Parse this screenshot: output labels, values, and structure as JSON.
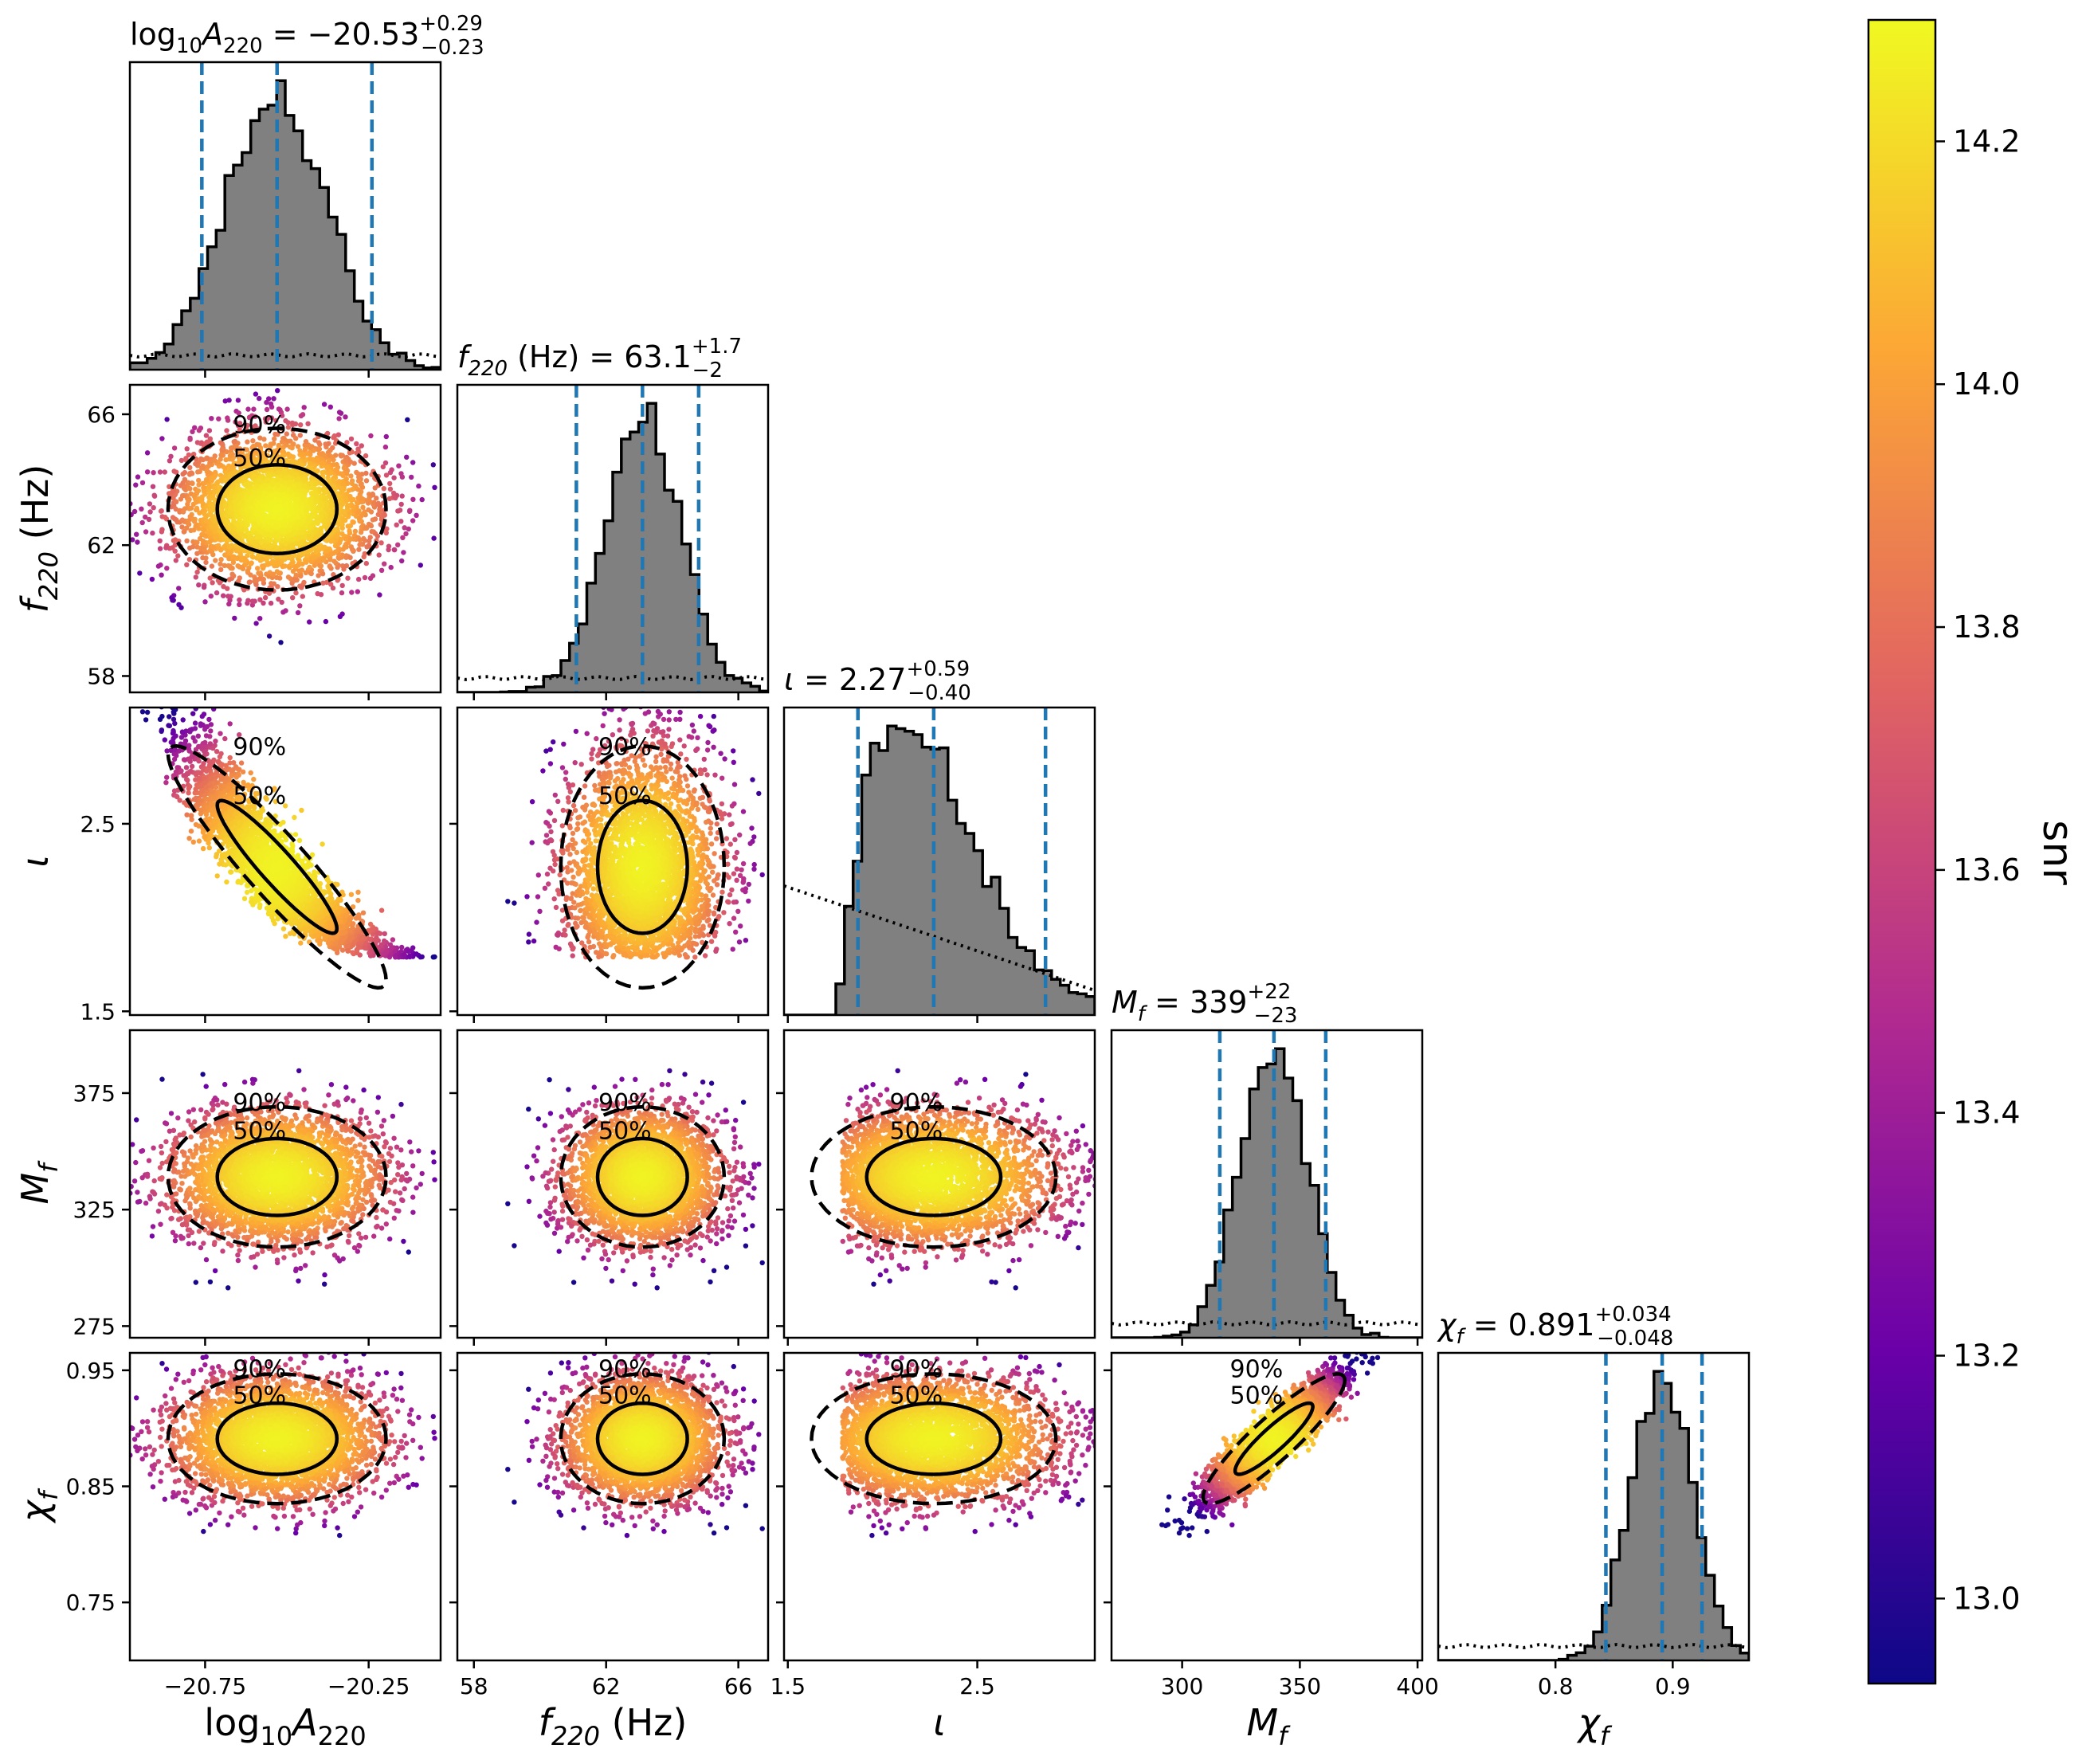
{
  "chart_data": {
    "type": "scatter",
    "subtype": "corner-plot",
    "colorbar": {
      "label": "snr",
      "range": [
        12.93,
        14.3
      ],
      "ticks": [
        13.0,
        13.2,
        13.4,
        13.6,
        13.8,
        14.0,
        14.2
      ],
      "tick_labels": [
        "13.0",
        "13.2",
        "13.4",
        "13.6",
        "13.8",
        "14.0",
        "14.2"
      ],
      "colormap": "plasma",
      "colors": [
        "#0d0887",
        "#6a00a8",
        "#b12a90",
        "#e16462",
        "#fca636",
        "#f0f921"
      ]
    },
    "parameters": [
      {
        "id": "logA",
        "axis_label": {
          "pre": "log",
          "sub1": "10",
          "main": "A",
          "sub2": "220"
        },
        "title": {
          "pre": "log",
          "sub1": "10",
          "main": "A",
          "sub2": "220",
          "eq": " = −20.53",
          "sup": "+0.29",
          "sub": "−0.23"
        },
        "range": [
          -20.98,
          -20.03
        ],
        "ticks": [
          -20.75,
          -20.25
        ],
        "tick_labels": [
          "−20.75",
          "−20.25"
        ],
        "median": -20.53,
        "lower": -20.76,
        "upper": -20.24,
        "sd": 0.155,
        "hist_shape": "skew"
      },
      {
        "id": "f220",
        "axis_label": {
          "main": "f",
          "sub": "220",
          "rest": " (Hz)"
        },
        "title": {
          "main": "f",
          "sub2": "220",
          "eq": " (Hz) = 63.1",
          "sup": "+1.7",
          "sub": "−2"
        },
        "range": [
          57.5,
          66.9
        ],
        "ticks": [
          58,
          62,
          66
        ],
        "tick_labels": [
          "58",
          "62",
          "66"
        ],
        "median": 63.1,
        "lower": 61.1,
        "upper": 64.8,
        "sd": 1.15,
        "hist_shape": "normal"
      },
      {
        "id": "iota",
        "axis_label": {
          "main": "ι"
        },
        "title": {
          "main": "ι",
          "eq": " = 2.27",
          "sup": "+0.59",
          "sub": "−0.40"
        },
        "range": [
          1.48,
          3.12
        ],
        "ticks": [
          1.5,
          2.5
        ],
        "tick_labels": [
          "1.5",
          "2.5"
        ],
        "median": 2.27,
        "lower": 1.87,
        "upper": 2.86,
        "sd": 0.3,
        "hist_shape": "iota"
      },
      {
        "id": "Mf",
        "axis_label": {
          "main": "M",
          "sub": "f"
        },
        "title": {
          "main": "M",
          "sub2": "f",
          "eq": " = 339",
          "sup": "+22",
          "sub": "−23"
        },
        "range": [
          270,
          402
        ],
        "ticks": [
          275,
          325,
          375
        ],
        "tick_labels": [
          "275",
          "325",
          "375"
        ],
        "xticks": [
          300,
          350,
          400
        ],
        "xtick_labels": [
          "300",
          "350",
          "400"
        ],
        "median": 339,
        "lower": 316,
        "upper": 361,
        "sd": 14,
        "hist_shape": "normal"
      },
      {
        "id": "chif",
        "axis_label": {
          "main": "χ",
          "sub": "f"
        },
        "title": {
          "main": "χ",
          "sub2": "f",
          "eq": " = 0.891",
          "sup": "+0.034",
          "sub": "−0.048"
        },
        "range": [
          0.7,
          0.965
        ],
        "ticks": [
          0.75,
          0.85,
          0.95
        ],
        "tick_labels": [
          "0.75",
          "0.85",
          "0.95"
        ],
        "xticks": [
          0.8,
          0.9
        ],
        "xtick_labels": [
          "0.8",
          "0.9"
        ],
        "median": 0.891,
        "lower": 0.843,
        "upper": 0.925,
        "sd": 0.026,
        "hist_shape": "normal"
      }
    ],
    "contour_levels": [
      "50%",
      "90%"
    ],
    "correlations": {
      "logA_iota": -0.93,
      "Mf_chif": 0.9
    },
    "prior_line": "dotted",
    "quantile_line_color": "#1f77b4",
    "hist_fill_color": "#808080"
  }
}
